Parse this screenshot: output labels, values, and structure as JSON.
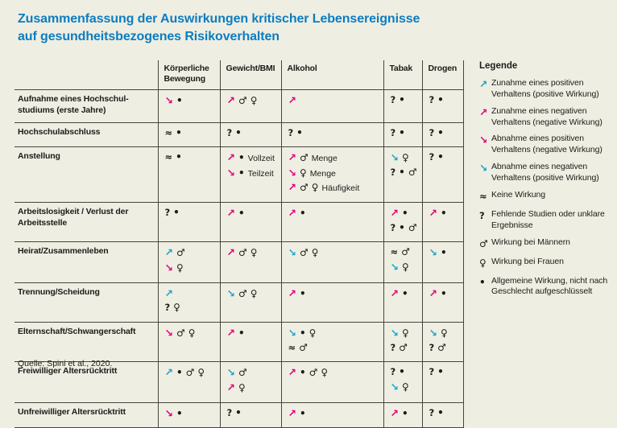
{
  "title": {
    "line1": "Zusammenfassung der Auswirkungen kritischer Lebensereignisse",
    "line2": "auf gesundheitsbezogenes Risikoverhalten"
  },
  "source": "Quelle: Spini et al., 2020.",
  "colors": {
    "background": "#efeee2",
    "title": "#0b7dc2",
    "arrow_positive": "#1ea3c9",
    "arrow_negative": "#e0007a",
    "grid": "#45453d",
    "text": "#1c1c1a"
  },
  "legend": {
    "title": "Legende",
    "items": [
      {
        "token": "u+",
        "text": "Zunahme eines positiven Verhaltens (positive Wirkung)"
      },
      {
        "token": "u-",
        "text": "Zunahme eines negativen Verhaltens (negative Wirkung)"
      },
      {
        "token": "d-",
        "text": "Abnahme eines positiven Verhaltens (negative Wirkung)"
      },
      {
        "token": "d+",
        "text": "Abnahme eines negativen Verhaltens (positive Wirkung)"
      },
      {
        "token": "~",
        "text": "Keine Wirkung"
      },
      {
        "token": "?",
        "text": "Fehlende Studien oder unklare Ergebnisse"
      },
      {
        "token": "m",
        "text": "Wirkung bei Männern"
      },
      {
        "token": "f",
        "text": "Wirkung bei Frauen"
      },
      {
        "token": ".",
        "text": "Allgemeine Wirkung, nicht nach Geschlecht aufgeschlüsselt"
      }
    ]
  },
  "chart_data": {
    "type": "table",
    "title": "Zusammenfassung der Auswirkungen kritischer Lebensereignisse auf gesundheitsbezogenes Risikoverhalten",
    "columns": [
      "Körperliche Bewegung",
      "Gewicht/BMI",
      "Alkohol",
      "Tabak",
      "Drogen"
    ],
    "symbol_key": {
      "u+": "Pfeil aufwärts (cyan): Zunahme eines positiven Verhaltens (positive Wirkung)",
      "u-": "Pfeil aufwärts (magenta): Zunahme eines negativen Verhaltens (negative Wirkung)",
      "d-": "Pfeil abwärts (magenta): Abnahme eines positiven Verhaltens (negative Wirkung)",
      "d+": "Pfeil abwärts (cyan): Abnahme eines negativen Verhaltens (positive Wirkung)",
      "~": "Keine Wirkung",
      "?": "Fehlende Studien oder unklare Ergebnisse",
      "m": "Wirkung bei Männern",
      "f": "Wirkung bei Frauen",
      ".": "Allgemeine Wirkung, nicht nach Geschlecht aufgeschlüsselt",
      "t:": "Textzusatz"
    },
    "rows": [
      {
        "label": "Aufnahme eines Hochschul­studiums (erste Jahre)",
        "cells": [
          [
            [
              "d-",
              "."
            ]
          ],
          [
            [
              "u-",
              "m",
              "f"
            ]
          ],
          [
            [
              "u-"
            ]
          ],
          [
            [
              "?",
              "."
            ]
          ],
          [
            [
              "?",
              "."
            ]
          ]
        ]
      },
      {
        "label": "Hochschulabschluss",
        "cells": [
          [
            [
              "~",
              "."
            ]
          ],
          [
            [
              "?",
              "."
            ]
          ],
          [
            [
              "?",
              "."
            ]
          ],
          [
            [
              "?",
              "."
            ]
          ],
          [
            [
              "?",
              "."
            ]
          ]
        ]
      },
      {
        "label": "Anstellung",
        "cells": [
          [
            [
              "~",
              "."
            ]
          ],
          [
            [
              "u-",
              ".",
              "t:Vollzeit"
            ],
            [
              "d-",
              ".",
              "t:Teilzeit"
            ]
          ],
          [
            [
              "u-",
              "m",
              "t:Menge"
            ],
            [
              "d-",
              "f",
              "t:Menge"
            ],
            [
              "u-",
              "m",
              "f",
              "t:Häufigkeit"
            ]
          ],
          [
            [
              "d+",
              "f"
            ],
            [
              "?",
              ".",
              "m"
            ]
          ],
          [
            [
              "?",
              "."
            ]
          ]
        ]
      },
      {
        "label": "Arbeitslosigkeit / Verlust der Arbeitsstelle",
        "cells": [
          [
            [
              "?",
              "."
            ]
          ],
          [
            [
              "u-",
              "."
            ]
          ],
          [
            [
              "u-",
              "."
            ]
          ],
          [
            [
              "u-",
              "."
            ],
            [
              "?",
              ".",
              "m"
            ]
          ],
          [
            [
              "u-",
              "."
            ]
          ]
        ]
      },
      {
        "label": "Heirat/Zusammenleben",
        "cells": [
          [
            [
              "u+",
              "m"
            ],
            [
              "d-",
              "f"
            ]
          ],
          [
            [
              "u-",
              "m",
              "f"
            ]
          ],
          [
            [
              "d+",
              "m",
              "f"
            ]
          ],
          [
            [
              "~",
              "m"
            ],
            [
              "d+",
              "f"
            ]
          ],
          [
            [
              "d+",
              "."
            ]
          ]
        ]
      },
      {
        "label": "Trennung/Scheidung",
        "cells": [
          [
            [
              "u+"
            ],
            [
              "?",
              "f"
            ]
          ],
          [
            [
              "d+",
              "m",
              "f"
            ]
          ],
          [
            [
              "u-",
              "."
            ]
          ],
          [
            [
              "u-",
              "."
            ]
          ],
          [
            [
              "u-",
              "."
            ]
          ]
        ]
      },
      {
        "label": "Elternschaft/Schwangerschaft",
        "cells": [
          [
            [
              "d-",
              "m",
              "f"
            ]
          ],
          [
            [
              "u-",
              "."
            ]
          ],
          [
            [
              "d+",
              ".",
              "f"
            ],
            [
              "~",
              "m"
            ]
          ],
          [
            [
              "d+",
              "f"
            ],
            [
              "?",
              "m"
            ]
          ],
          [
            [
              "d+",
              "f"
            ],
            [
              "?",
              "m"
            ]
          ]
        ]
      },
      {
        "label": "Freiwilliger Altersrücktritt",
        "cells": [
          [
            [
              "u+",
              ".",
              "m",
              "f"
            ]
          ],
          [
            [
              "d+",
              "m"
            ],
            [
              "u-",
              "f"
            ]
          ],
          [
            [
              "u-",
              ".",
              "m",
              "f"
            ]
          ],
          [
            [
              "?",
              "."
            ],
            [
              "d+",
              "f"
            ]
          ],
          [
            [
              "?",
              "."
            ]
          ]
        ]
      },
      {
        "label": "Unfreiwilliger Altersrücktritt",
        "cells": [
          [
            [
              "d-",
              "."
            ]
          ],
          [
            [
              "?",
              "."
            ]
          ],
          [
            [
              "u-",
              "."
            ]
          ],
          [
            [
              "u-",
              "."
            ]
          ],
          [
            [
              "?",
              "."
            ]
          ]
        ]
      }
    ]
  }
}
